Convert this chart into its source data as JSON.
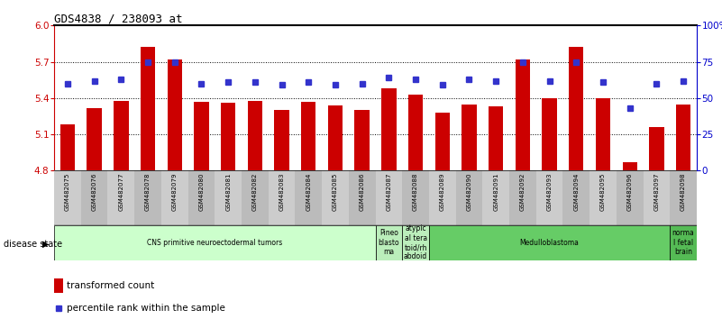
{
  "title": "GDS4838 / 238093_at",
  "samples": [
    "GSM482075",
    "GSM482076",
    "GSM482077",
    "GSM482078",
    "GSM482079",
    "GSM482080",
    "GSM482081",
    "GSM482082",
    "GSM482083",
    "GSM482084",
    "GSM482085",
    "GSM482086",
    "GSM482087",
    "GSM482088",
    "GSM482089",
    "GSM482090",
    "GSM482091",
    "GSM482092",
    "GSM482093",
    "GSM482094",
    "GSM482095",
    "GSM482096",
    "GSM482097",
    "GSM482098"
  ],
  "bar_values": [
    5.18,
    5.32,
    5.38,
    5.82,
    5.72,
    5.37,
    5.36,
    5.38,
    5.3,
    5.37,
    5.34,
    5.3,
    5.48,
    5.43,
    5.28,
    5.35,
    5.33,
    5.72,
    5.4,
    5.82,
    5.4,
    4.87,
    5.16,
    5.35
  ],
  "dot_values": [
    60,
    62,
    63,
    75,
    75,
    60,
    61,
    61,
    59,
    61,
    59,
    60,
    64,
    63,
    59,
    63,
    62,
    75,
    62,
    75,
    61,
    43,
    60,
    62
  ],
  "ylim_left": [
    4.8,
    6.0
  ],
  "ylim_right": [
    0,
    100
  ],
  "yticks_left": [
    4.8,
    5.1,
    5.4,
    5.7,
    6.0
  ],
  "yticks_right": [
    0,
    25,
    50,
    75,
    100
  ],
  "ytick_labels_right": [
    "0",
    "25",
    "50",
    "75",
    "100%"
  ],
  "bar_color": "#CC0000",
  "dot_color": "#3333CC",
  "bar_width": 0.55,
  "groups": [
    {
      "label": "CNS primitive neuroectodermal tumors",
      "start": 0,
      "end": 12,
      "color": "#CCFFCC"
    },
    {
      "label": "Pineo\nblasto\nma",
      "start": 12,
      "end": 13,
      "color": "#BBEEBB"
    },
    {
      "label": "atypic\nal tera\ntoid/rh\nabdoid",
      "start": 13,
      "end": 14,
      "color": "#BBEEBB"
    },
    {
      "label": "Medulloblastoma",
      "start": 14,
      "end": 23,
      "color": "#66CC66"
    },
    {
      "label": "norma\nl fetal\nbrain",
      "start": 23,
      "end": 24,
      "color": "#55BB55"
    }
  ],
  "legend_bar_label": "transformed count",
  "legend_dot_label": "percentile rank within the sample",
  "disease_state_label": "disease state",
  "left_axis_color": "#CC0000",
  "right_axis_color": "#0000CC",
  "label_bg_color": "#CCCCCC",
  "label_bg_color2": "#BBBBBB"
}
